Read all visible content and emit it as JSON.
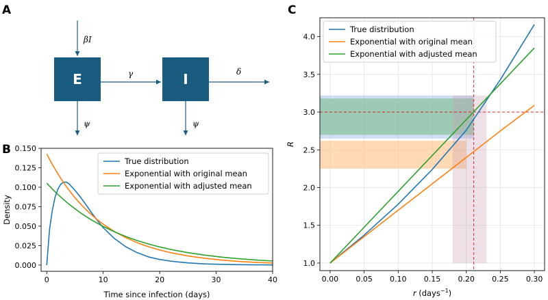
{
  "panel_letters": {
    "a": "A",
    "b": "B",
    "c": "C"
  },
  "diagram": {
    "box_e": "E",
    "box_i": "I",
    "inflow_label": "βI",
    "transition_label": "γ",
    "outflow_label": "δ",
    "death_e_label": "ψ",
    "death_i_label": "ψ",
    "box_color": "#1a5c80"
  },
  "chart_data": [
    {
      "id": "B",
      "type": "line",
      "xlabel": "Time since infection (days)",
      "ylabel": "Density",
      "xlim": [
        -1,
        40
      ],
      "ylim": [
        -0.008,
        0.15
      ],
      "x_ticks": [
        0,
        10,
        20,
        30,
        40
      ],
      "y_ticks": [
        0.0,
        0.025,
        0.05,
        0.075,
        0.1,
        0.125,
        0.15
      ],
      "y_tick_labels": [
        "0.000",
        "0.025",
        "0.050",
        "0.075",
        "0.100",
        "0.125",
        "0.150"
      ],
      "grid": false,
      "legend_position": "top-right",
      "x": [
        0,
        0.5,
        1,
        1.5,
        2,
        2.5,
        3,
        3.5,
        4,
        5,
        6,
        7,
        8,
        9,
        10,
        12,
        14,
        16,
        18,
        20,
        22,
        25,
        28,
        31,
        34,
        37,
        40
      ],
      "series": [
        {
          "name": "True distribution",
          "color": "#1f77b4",
          "values": [
            0.0,
            0.046,
            0.071,
            0.088,
            0.098,
            0.104,
            0.1065,
            0.1065,
            0.104,
            0.096,
            0.087,
            0.077,
            0.0665,
            0.057,
            0.048,
            0.034,
            0.0235,
            0.016,
            0.0105,
            0.0072,
            0.005,
            0.0028,
            0.0015,
            0.0009,
            0.0005,
            0.0003,
            0.0002
          ]
        },
        {
          "name": "Exponential with original mean",
          "color": "#ff7f0e",
          "values": [
            0.1428,
            0.1358,
            0.1292,
            0.1229,
            0.1169,
            0.1112,
            0.1058,
            0.1006,
            0.0957,
            0.0866,
            0.0784,
            0.0709,
            0.0642,
            0.0581,
            0.0525,
            0.043,
            0.0352,
            0.0288,
            0.0236,
            0.0193,
            0.0158,
            0.0117,
            0.0087,
            0.0064,
            0.0047,
            0.0035,
            0.0026
          ]
        },
        {
          "name": "Exponential with adjusted mean",
          "color": "#2ca02c",
          "values": [
            0.1052,
            0.1013,
            0.0976,
            0.094,
            0.0905,
            0.0872,
            0.084,
            0.0809,
            0.0779,
            0.0723,
            0.067,
            0.0622,
            0.0577,
            0.0535,
            0.0496,
            0.0427,
            0.0367,
            0.0315,
            0.0271,
            0.0233,
            0.02,
            0.016,
            0.0128,
            0.0102,
            0.0082,
            0.0065,
            0.0052
          ]
        }
      ]
    },
    {
      "id": "C",
      "type": "line",
      "xlabel": "r (days⁻¹)",
      "xlabel_main": "r",
      "xlabel_units": "(days",
      "xlabel_sup": "−1",
      "xlabel_close": ")",
      "ylabel": "R",
      "xlim": [
        -0.015,
        0.315
      ],
      "ylim": [
        0.9,
        4.25
      ],
      "x_ticks": [
        0.0,
        0.05,
        0.1,
        0.15,
        0.2,
        0.25,
        0.3
      ],
      "x_tick_labels": [
        "0.00",
        "0.05",
        "0.10",
        "0.15",
        "0.20",
        "0.25",
        "0.30"
      ],
      "y_ticks": [
        1.0,
        1.5,
        2.0,
        2.5,
        3.0,
        3.5,
        4.0
      ],
      "y_tick_labels": [
        "1.0",
        "1.5",
        "2.0",
        "2.5",
        "3.0",
        "3.5",
        "4.0"
      ],
      "grid": true,
      "legend_position": "top-left",
      "x": [
        0,
        0.05,
        0.1,
        0.15,
        0.2,
        0.25,
        0.3
      ],
      "series": [
        {
          "name": "True distribution",
          "color": "#1f77b4",
          "values": [
            1.0,
            1.37,
            1.78,
            2.24,
            2.76,
            3.43,
            4.16
          ]
        },
        {
          "name": "Exponential with original mean",
          "color": "#ff7f0e",
          "values": [
            1.0,
            1.35,
            1.7,
            2.05,
            2.4,
            2.75,
            3.09
          ]
        },
        {
          "name": "Exponential with adjusted mean",
          "color": "#2ca02c",
          "values": [
            1.0,
            1.475,
            1.95,
            2.425,
            2.9,
            3.375,
            3.85
          ]
        }
      ],
      "reference_lines": {
        "r": 0.211,
        "R": 3.0,
        "color": "#d62728"
      },
      "bands": [
        {
          "name": "blue-band",
          "axis": "y",
          "from": 2.65,
          "to": 3.22,
          "x_to": 0.211,
          "color": "#aec7e8",
          "opacity": 0.6
        },
        {
          "name": "green-band",
          "axis": "y",
          "from": 2.7,
          "to": 3.18,
          "x_to": 0.211,
          "color": "#2ca02c",
          "opacity": 0.3
        },
        {
          "name": "orange-band",
          "axis": "y",
          "from": 2.25,
          "to": 2.62,
          "x_to": 0.2,
          "color": "#ffbb78",
          "opacity": 0.55
        },
        {
          "name": "vertical-band",
          "axis": "x",
          "from": 0.18,
          "to": 0.23,
          "y_to": 3.22,
          "color": "#c49cb0",
          "opacity": 0.3
        }
      ]
    }
  ]
}
